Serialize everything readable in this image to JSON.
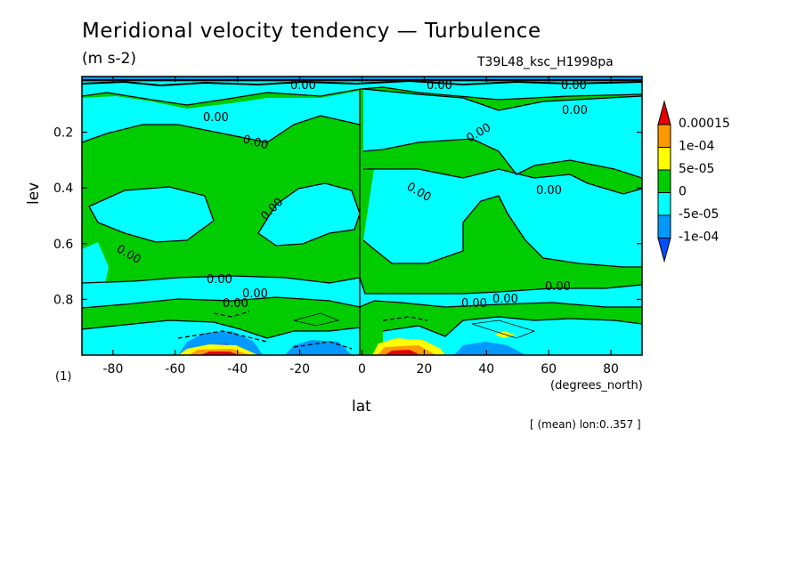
{
  "chart_data": {
    "type": "heatmap",
    "title": "Meridional velocity tendency — Turbulence",
    "units": "(m s-2)",
    "run_label": "T39L48_ksc_H1998pa",
    "xlabel": "lat",
    "x_unit_label": "(degrees_north)",
    "ylabel": "lev",
    "panel_label": "(1)",
    "note": "[ (mean) lon:0..357 ]",
    "x_ticks": [
      "-80",
      "-60",
      "-40",
      "-20",
      "0",
      "20",
      "40",
      "60",
      "80"
    ],
    "y_ticks": [
      "0.2",
      "0.4",
      "0.6",
      "0.8"
    ],
    "xlim": [
      -90,
      90
    ],
    "ylim": [
      0.0,
      1.0
    ],
    "y_inverted": true,
    "contour_label": "0.00",
    "colorbar": {
      "labels": [
        "0.00015",
        "1e-04",
        "5e-05",
        "0",
        "-5e-05",
        "-1e-04"
      ],
      "colors": [
        "#e60000",
        "#ff9900",
        "#ffff00",
        "#00cc00",
        "#00ffff",
        "#0099ff",
        "#0050ff"
      ]
    }
  }
}
